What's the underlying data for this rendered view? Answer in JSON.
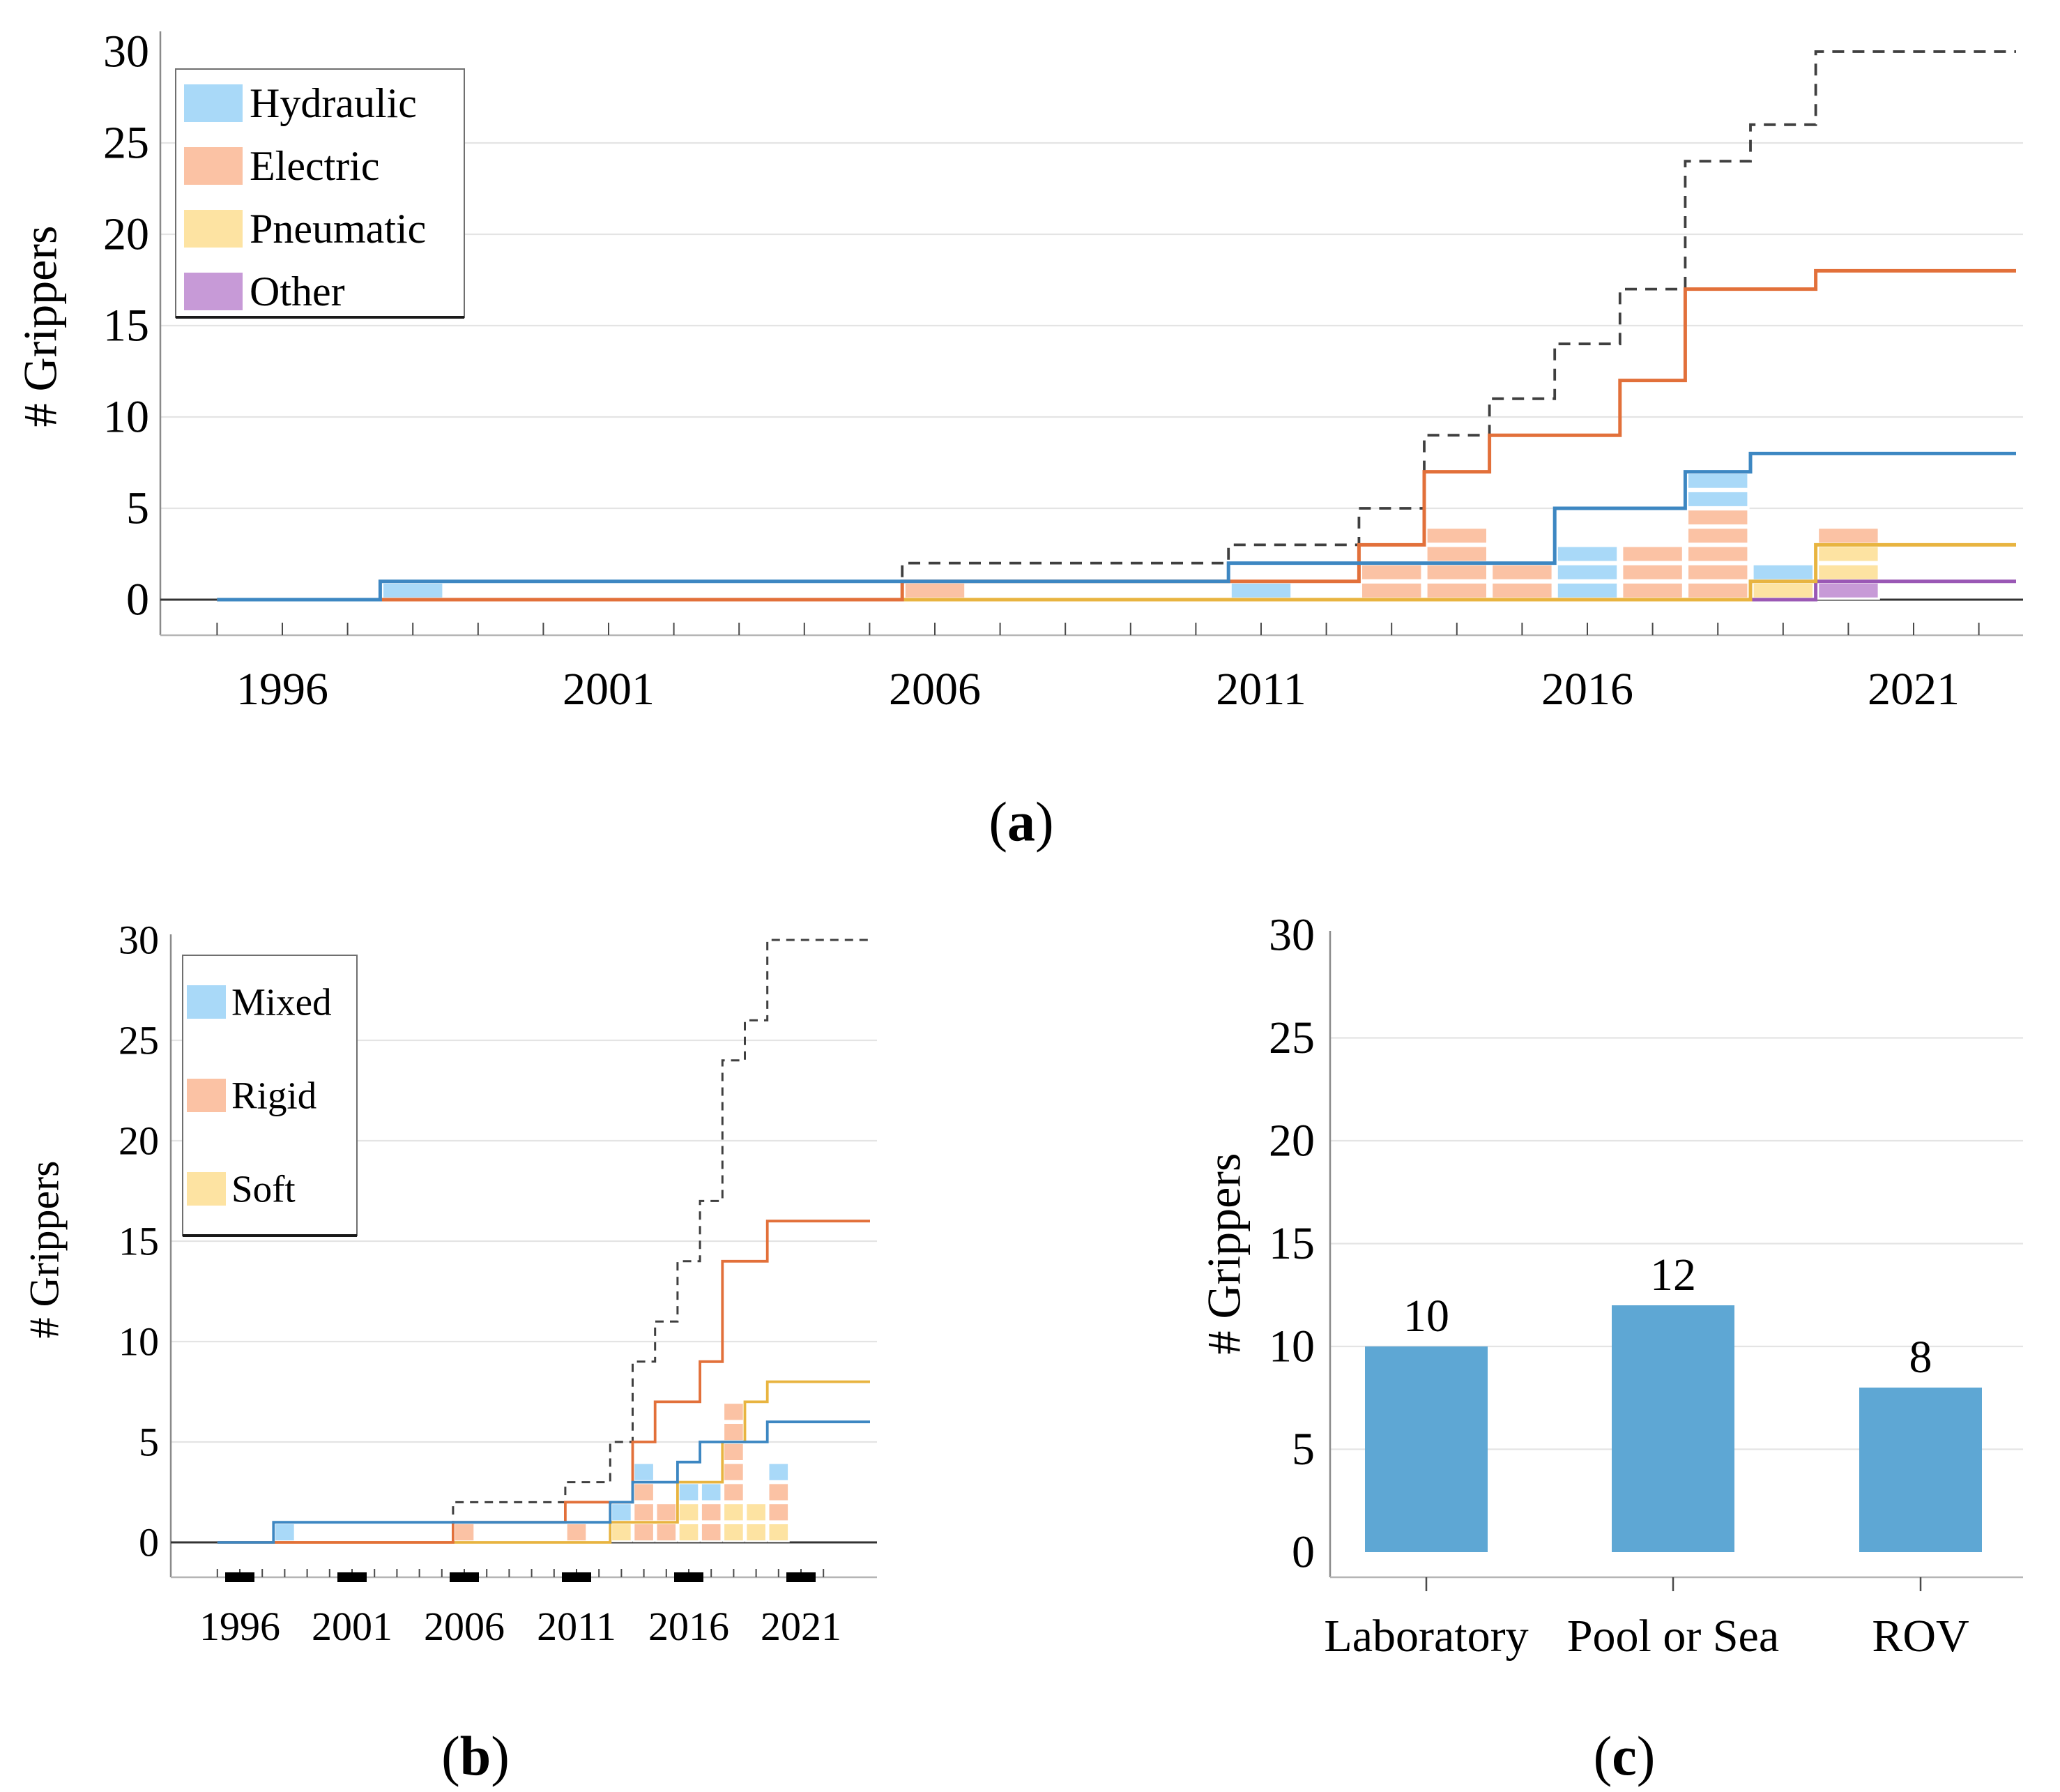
{
  "figure": {
    "ylabel_a": "# Grippers",
    "ylabel_b": "# Grippers",
    "ylabel_c": "# Grippers",
    "captions": {
      "a_open": "(",
      "a_letter": "a",
      "a_close": ")",
      "b_open": "(",
      "b_letter": "b",
      "b_close": ")",
      "c_open": "(",
      "c_letter": "c",
      "c_close": ")"
    }
  },
  "colors": {
    "grid": "#e4e4e4",
    "axis_line": "#b5b5b5",
    "y_axis": "#8a8a8a",
    "tick": "#4a4a4a",
    "bold_tick": "#000000",
    "zero_line": "#333333",
    "total_line": "#3f3f3f",
    "legend_border": "#6f6f6f",
    "legend_bottom": "#1a1a1a",
    "bar": "#5ea7d4",
    "text": "#000000",
    "hydraulic_fill": "#a9d9f8",
    "hydraulic_line": "#3d87c2",
    "electric_fill": "#fbc2a4",
    "electric_line": "#e2703a",
    "pneumatic_fill": "#fde3a2",
    "pneumatic_line": "#e8b440",
    "other_fill": "#c79ad7",
    "other_line": "#9a58b5"
  },
  "chart_data": [
    {
      "id": "a",
      "type": "cumulative-step-with-unit-blocks",
      "ylabel": "# Grippers",
      "ylim": [
        0,
        30
      ],
      "xrange": [
        1995,
        2022
      ],
      "grid_values": [
        5,
        10,
        15,
        20,
        25
      ],
      "ytick_labels": [
        "0",
        "5",
        "10",
        "15",
        "20",
        "25",
        "30"
      ],
      "xtick_label_years": [
        1996,
        2001,
        2006,
        2011,
        2016,
        2021
      ],
      "legend_position": "top-left",
      "series": [
        {
          "key": "hydraulic",
          "label": "Hydraulic",
          "fill": "#a9d9f8",
          "line": "#3d87c2",
          "yearly": {
            "1998": 1,
            "2011": 1,
            "2016": 3,
            "2018": 2,
            "2019": 1
          },
          "cumulative": [
            [
              1995,
              0
            ],
            [
              1998,
              1
            ],
            [
              2011,
              2
            ],
            [
              2016,
              5
            ],
            [
              2018,
              7
            ],
            [
              2019,
              8
            ]
          ],
          "final": 8
        },
        {
          "key": "electric",
          "label": "Electric",
          "fill": "#fbc2a4",
          "line": "#e2703a",
          "yearly": {
            "2006": 1,
            "2013": 2,
            "2014": 4,
            "2015": 2,
            "2017": 3,
            "2018": 5,
            "2020": 1
          },
          "cumulative": [
            [
              1995,
              0
            ],
            [
              2006,
              1
            ],
            [
              2013,
              3
            ],
            [
              2014,
              7
            ],
            [
              2015,
              9
            ],
            [
              2017,
              12
            ],
            [
              2018,
              17
            ],
            [
              2020,
              18
            ]
          ],
          "final": 18
        },
        {
          "key": "pneumatic",
          "label": "Pneumatic",
          "fill": "#fde3a2",
          "line": "#e8b440",
          "yearly": {
            "2019": 1,
            "2020": 2
          },
          "cumulative": [
            [
              1995,
              0
            ],
            [
              2019,
              1
            ],
            [
              2020,
              3
            ]
          ],
          "final": 3
        },
        {
          "key": "other",
          "label": "Other",
          "fill": "#c79ad7",
          "line": "#9a58b5",
          "yearly": {
            "2020": 1
          },
          "cumulative": [
            [
              1995,
              0
            ],
            [
              2020,
              1
            ]
          ],
          "final": 1
        }
      ],
      "total": {
        "label": "Total",
        "style": "dashed",
        "cumulative": [
          [
            1995,
            0
          ],
          [
            1998,
            1
          ],
          [
            2006,
            2
          ],
          [
            2011,
            3
          ],
          [
            2013,
            5
          ],
          [
            2014,
            9
          ],
          [
            2015,
            11
          ],
          [
            2016,
            14
          ],
          [
            2017,
            17
          ],
          [
            2018,
            24
          ],
          [
            2019,
            26
          ],
          [
            2020,
            30
          ]
        ],
        "final": 30
      },
      "stacks": {
        "1998": [
          "hydraulic"
        ],
        "2006": [
          "electric"
        ],
        "2011": [
          "hydraulic"
        ],
        "2013": [
          "electric",
          "electric"
        ],
        "2014": [
          "electric",
          "electric",
          "electric",
          "electric"
        ],
        "2015": [
          "electric",
          "electric"
        ],
        "2016": [
          "hydraulic",
          "hydraulic",
          "hydraulic"
        ],
        "2017": [
          "electric",
          "electric",
          "electric"
        ],
        "2018": [
          "electric",
          "electric",
          "electric",
          "electric",
          "electric",
          "hydraulic",
          "hydraulic"
        ],
        "2019": [
          "pneumatic",
          "hydraulic"
        ],
        "2020": [
          "other",
          "pneumatic",
          "pneumatic",
          "electric"
        ]
      }
    },
    {
      "id": "b",
      "type": "cumulative-step-with-unit-blocks",
      "ylabel": "# Grippers",
      "ylim": [
        0,
        30
      ],
      "xrange": [
        1995,
        2022
      ],
      "grid_values": [
        5,
        10,
        15,
        20,
        25
      ],
      "ytick_labels": [
        "0",
        "5",
        "10",
        "15",
        "20",
        "25",
        "30"
      ],
      "xtick_label_years": [
        1996,
        2001,
        2006,
        2011,
        2016,
        2021
      ],
      "legend_position": "top-left",
      "series": [
        {
          "key": "mixed",
          "label": "Mixed",
          "fill": "#a9d9f8",
          "line": "#3d87c2",
          "yearly": {
            "1998": 1,
            "2013": 1,
            "2014": 1,
            "2016": 1,
            "2017": 1,
            "2020": 1
          },
          "cumulative": [
            [
              1995,
              0
            ],
            [
              1998,
              1
            ],
            [
              2013,
              2
            ],
            [
              2014,
              3
            ],
            [
              2016,
              4
            ],
            [
              2017,
              5
            ],
            [
              2020,
              6
            ]
          ],
          "final": 6
        },
        {
          "key": "rigid",
          "label": "Rigid",
          "fill": "#fbc2a4",
          "line": "#e2703a",
          "yearly": {
            "2006": 1,
            "2011": 1,
            "2014": 3,
            "2015": 2,
            "2017": 2,
            "2018": 5,
            "2020": 2
          },
          "cumulative": [
            [
              1995,
              0
            ],
            [
              2006,
              1
            ],
            [
              2011,
              2
            ],
            [
              2014,
              5
            ],
            [
              2015,
              7
            ],
            [
              2017,
              9
            ],
            [
              2018,
              14
            ],
            [
              2020,
              16
            ]
          ],
          "final": 16
        },
        {
          "key": "soft",
          "label": "Soft",
          "fill": "#fde3a2",
          "line": "#e8b440",
          "yearly": {
            "2013": 1,
            "2016": 2,
            "2018": 2,
            "2019": 2,
            "2020": 1
          },
          "cumulative": [
            [
              1995,
              0
            ],
            [
              2013,
              1
            ],
            [
              2016,
              3
            ],
            [
              2018,
              5
            ],
            [
              2019,
              7
            ],
            [
              2020,
              8
            ]
          ],
          "final": 8
        }
      ],
      "total": {
        "label": "Total",
        "style": "dashed",
        "cumulative": [
          [
            1995,
            0
          ],
          [
            1998,
            1
          ],
          [
            2006,
            2
          ],
          [
            2011,
            3
          ],
          [
            2013,
            5
          ],
          [
            2014,
            9
          ],
          [
            2015,
            11
          ],
          [
            2016,
            14
          ],
          [
            2017,
            17
          ],
          [
            2018,
            24
          ],
          [
            2019,
            26
          ],
          [
            2020,
            30
          ]
        ],
        "final": 30
      },
      "stacks": {
        "1998": [
          "mixed"
        ],
        "2006": [
          "rigid"
        ],
        "2011": [
          "rigid"
        ],
        "2013": [
          "soft",
          "mixed"
        ],
        "2014": [
          "rigid",
          "rigid",
          "rigid",
          "mixed"
        ],
        "2015": [
          "rigid",
          "rigid"
        ],
        "2016": [
          "soft",
          "soft",
          "mixed"
        ],
        "2017": [
          "rigid",
          "rigid",
          "mixed"
        ],
        "2018": [
          "soft",
          "soft",
          "rigid",
          "rigid",
          "rigid",
          "rigid",
          "rigid"
        ],
        "2019": [
          "soft",
          "soft"
        ],
        "2020": [
          "soft",
          "rigid",
          "rigid",
          "mixed"
        ]
      }
    },
    {
      "id": "c",
      "type": "bar",
      "ylabel": "# Grippers",
      "ylim": [
        0,
        30
      ],
      "grid_values": [
        5,
        10,
        15,
        20,
        25
      ],
      "ytick_labels": [
        "0",
        "5",
        "10",
        "15",
        "20",
        "25",
        "30"
      ],
      "categories": [
        "Laboratory",
        "Pool or Sea",
        "ROV"
      ],
      "values": [
        10,
        12,
        8
      ]
    }
  ]
}
